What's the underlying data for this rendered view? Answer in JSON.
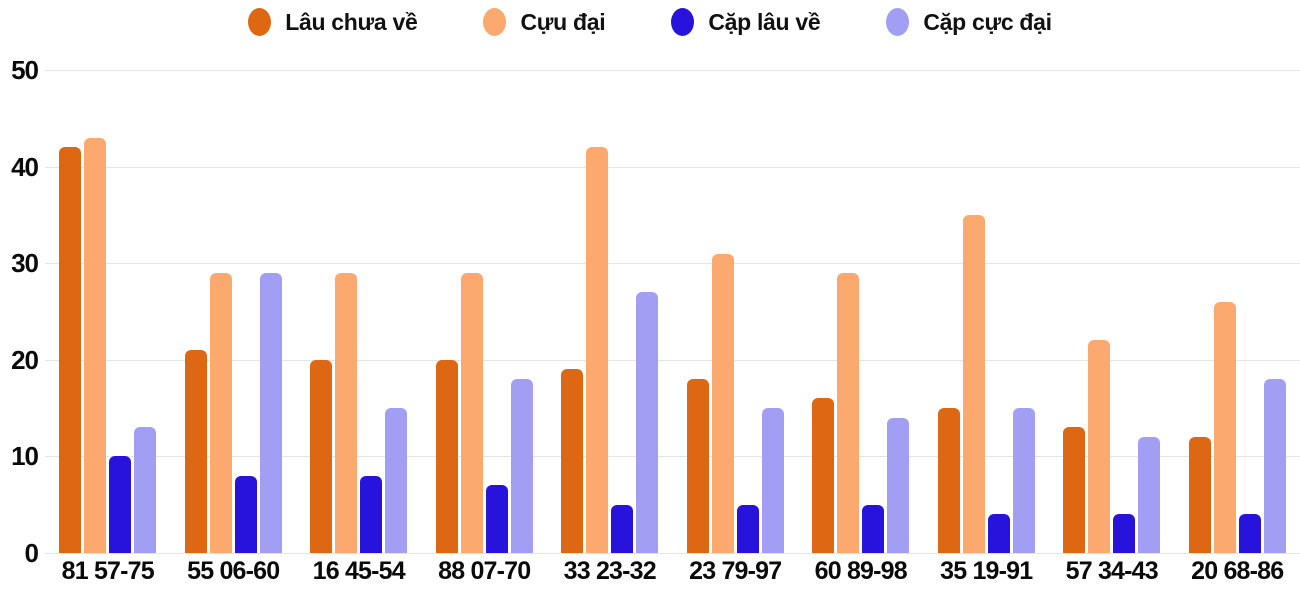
{
  "chart_data": {
    "type": "bar",
    "title": "",
    "xlabel": "",
    "ylabel": "",
    "categories": [
      "81 57-75",
      "55 06-60",
      "16 45-54",
      "88 07-70",
      "33 23-32",
      "23 79-97",
      "60 89-98",
      "35 19-91",
      "57 34-43",
      "20 68-86"
    ],
    "series": [
      {
        "name": "Lâu chưa về",
        "color": "#de6714",
        "values": [
          42,
          21,
          20,
          20,
          19,
          18,
          16,
          15,
          13,
          12
        ]
      },
      {
        "name": "Cựu đại",
        "color": "#fba96f",
        "values": [
          43,
          29,
          29,
          29,
          42,
          31,
          29,
          35,
          22,
          26
        ]
      },
      {
        "name": "Cặp lâu về",
        "color": "#2713db",
        "values": [
          10,
          8,
          8,
          7,
          5,
          5,
          5,
          4,
          4,
          4
        ]
      },
      {
        "name": "Cặp cực đại",
        "color": "#a29ef4",
        "values": [
          13,
          29,
          15,
          18,
          27,
          15,
          14,
          15,
          12,
          18
        ]
      }
    ],
    "ylim": [
      0,
      50
    ],
    "yticks": [
      0,
      10,
      20,
      30,
      40,
      50
    ],
    "grid": true,
    "legend_position": "top",
    "colors": {
      "grid": "#e4e4e4",
      "text": "#0a0a0a",
      "background": "#ffffff"
    }
  }
}
